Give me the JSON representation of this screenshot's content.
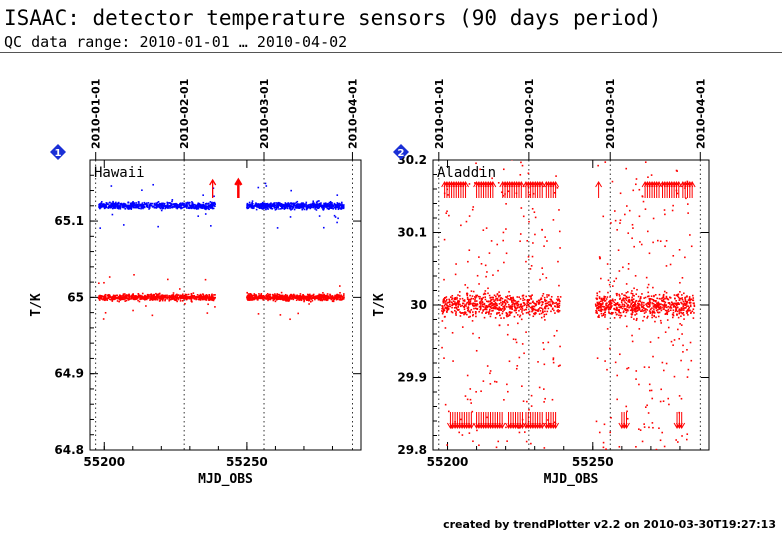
{
  "header": {
    "title": "ISAAC: detector temperature sensors (90 days period)",
    "subtitle": "QC data range: 2010-01-01 … 2010-04-02"
  },
  "footer": {
    "text": "created by trendPlotter v2.2 on 2010-03-30T19:27:13"
  },
  "colors": {
    "blue": "#0000ff",
    "red": "#ff0000",
    "badge": "#1a2fd6"
  },
  "chart_data": [
    {
      "type": "scatter",
      "panel": "Hawaii",
      "badge": "1",
      "xlabel": "MJD_OBS",
      "ylabel": "T/K",
      "xlim": [
        55195,
        55290
      ],
      "ylim": [
        64.8,
        65.18
      ],
      "xticks": [
        55200,
        55250
      ],
      "yticks": [
        64.8,
        64.9,
        65,
        65.1
      ],
      "date_markers": [
        {
          "label": "2010-01-01",
          "mjd": 55197
        },
        {
          "label": "2010-02-01",
          "mjd": 55228
        },
        {
          "label": "2010-03-01",
          "mjd": 55256
        },
        {
          "label": "2010-04-01",
          "mjd": 55287
        }
      ],
      "grid": false,
      "series": [
        {
          "color": "blue",
          "segments": [
            [
              55198,
              55239
            ],
            [
              55250,
              55284
            ]
          ],
          "level": 65.12,
          "spread": 0.004
        },
        {
          "color": "red",
          "segments": [
            [
              55198,
              55239
            ],
            [
              55250,
              55284
            ]
          ],
          "level": 65.0,
          "spread": 0.004
        }
      ],
      "out_of_range_arrows": [
        {
          "mjd": 55238,
          "color": "red"
        },
        {
          "mjd": 55247,
          "color": "red",
          "thick": true
        }
      ]
    },
    {
      "type": "scatter",
      "panel": "Aladdin",
      "badge": "2",
      "xlabel": "MJD_OBS",
      "ylabel": "T/K",
      "xlim": [
        55195,
        55290
      ],
      "ylim": [
        29.8,
        30.2
      ],
      "xticks": [
        55200,
        55250
      ],
      "yticks": [
        29.8,
        29.9,
        30,
        30.1,
        30.2
      ],
      "date_markers": [
        {
          "label": "2010-01-01",
          "mjd": 55197
        },
        {
          "label": "2010-02-01",
          "mjd": 55228
        },
        {
          "label": "2010-03-01",
          "mjd": 55256
        },
        {
          "label": "2010-04-01",
          "mjd": 55287
        }
      ],
      "grid": false,
      "series": [
        {
          "color": "red",
          "segments": [
            [
              55198,
              55239
            ],
            [
              55251,
              55285
            ]
          ],
          "level": 30.0,
          "spread": 0.015
        }
      ]
    }
  ]
}
